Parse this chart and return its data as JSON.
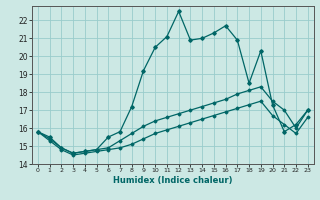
{
  "xlabel": "Humidex (Indice chaleur)",
  "bg_color": "#cce8e4",
  "grid_color": "#99cccc",
  "line_color": "#006666",
  "xlim": [
    -0.5,
    23.5
  ],
  "ylim": [
    14,
    22.8
  ],
  "yticks": [
    14,
    15,
    16,
    17,
    18,
    19,
    20,
    21,
    22
  ],
  "xticks": [
    0,
    1,
    2,
    3,
    4,
    5,
    6,
    7,
    8,
    9,
    10,
    11,
    12,
    13,
    14,
    15,
    16,
    17,
    18,
    19,
    20,
    21,
    22,
    23
  ],
  "series1_x": [
    0,
    1,
    2,
    3,
    4,
    5,
    6,
    7,
    8,
    9,
    10,
    11,
    12,
    13,
    14,
    15,
    16,
    17,
    18,
    19,
    20,
    21,
    22,
    23
  ],
  "series1_y": [
    15.8,
    15.5,
    14.9,
    14.6,
    14.7,
    14.8,
    15.5,
    15.8,
    17.2,
    19.2,
    20.5,
    21.1,
    22.5,
    20.9,
    21.0,
    21.3,
    21.7,
    20.9,
    18.5,
    20.3,
    17.3,
    15.8,
    16.2,
    17.0
  ],
  "series2_x": [
    0,
    1,
    2,
    3,
    4,
    5,
    6,
    7,
    8,
    9,
    10,
    11,
    12,
    13,
    14,
    15,
    16,
    17,
    18,
    19,
    20,
    21,
    22,
    23
  ],
  "series2_y": [
    15.8,
    15.4,
    14.9,
    14.6,
    14.7,
    14.8,
    14.9,
    15.3,
    15.7,
    16.1,
    16.4,
    16.6,
    16.8,
    17.0,
    17.2,
    17.4,
    17.6,
    17.9,
    18.1,
    18.3,
    17.5,
    17.0,
    16.0,
    17.0
  ],
  "series3_x": [
    0,
    1,
    2,
    3,
    4,
    5,
    6,
    7,
    8,
    9,
    10,
    11,
    12,
    13,
    14,
    15,
    16,
    17,
    18,
    19,
    20,
    21,
    22,
    23
  ],
  "series3_y": [
    15.8,
    15.3,
    14.8,
    14.5,
    14.6,
    14.7,
    14.8,
    14.9,
    15.1,
    15.4,
    15.7,
    15.9,
    16.1,
    16.3,
    16.5,
    16.7,
    16.9,
    17.1,
    17.3,
    17.5,
    16.7,
    16.2,
    15.7,
    16.6
  ]
}
